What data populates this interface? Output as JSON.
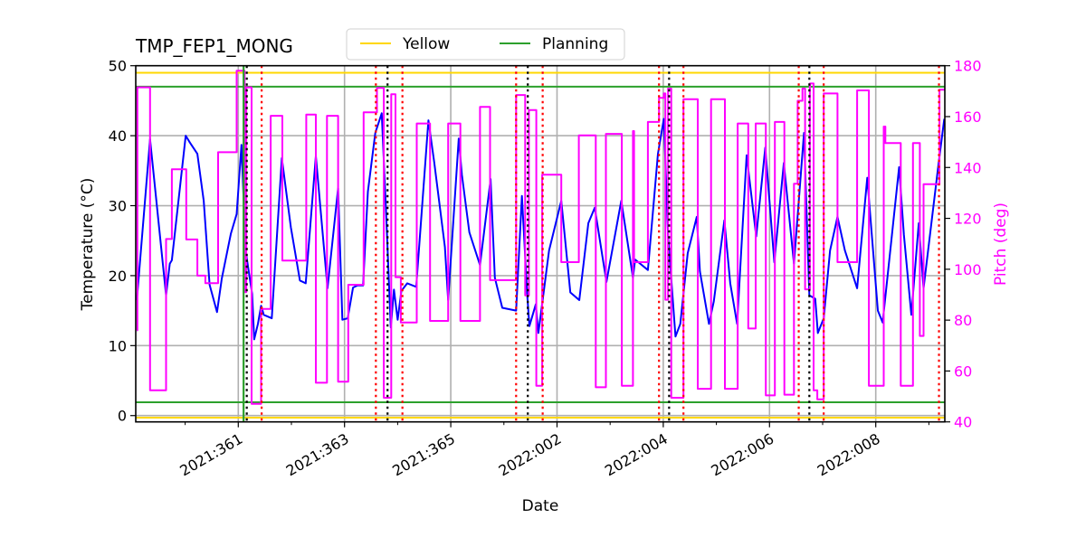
{
  "chart_data": {
    "type": "line",
    "title": "TMP_FEP1_MONG",
    "xlabel": "Date",
    "ylabel": "Temperature (°C)",
    "y2label": "Pitch (deg)",
    "xlim": [
      "2021:359.07",
      "2022:009.30"
    ],
    "ylim": [
      -0.9,
      50
    ],
    "y2lim": [
      40,
      180
    ],
    "grid": true,
    "legend_position": "top-center",
    "x_ticks": [
      "2021:361",
      "2021:363",
      "2021:365",
      "2022:002",
      "2022:004",
      "2022:006",
      "2022:008"
    ],
    "x_minor_ticks": [
      "2021:360",
      "2021:362",
      "2021:364",
      "2022:001",
      "2022:003",
      "2022:005",
      "2022:007",
      "2022:009"
    ],
    "y_ticks": [
      0,
      10,
      20,
      30,
      40,
      50
    ],
    "y2_ticks": [
      40,
      60,
      80,
      100,
      120,
      140,
      160,
      180
    ],
    "colors": {
      "temperature": "#0000ff",
      "pitch": "#ff00ff",
      "yellow": "#ffd700",
      "planning": "#2ca02c",
      "red_marker": "#ff0000",
      "black_marker": "#000000",
      "pitch_axis": "#ff00ff"
    },
    "legend": [
      {
        "label": "Yellow",
        "color": "#ffd700"
      },
      {
        "label": "Planning",
        "color": "#2ca02c"
      }
    ],
    "limits": {
      "yellow": [
        49.0,
        -0.3
      ],
      "planning": [
        47.0,
        1.9
      ]
    },
    "vertical_markers": [
      {
        "time": "2021:361.10",
        "style": "solid",
        "color": "#2ca02c"
      },
      {
        "time": "2021:361.16",
        "style": "dotted",
        "color": "#000000"
      },
      {
        "time": "2021:361.44",
        "style": "dotted",
        "color": "#ff0000"
      },
      {
        "time": "2021:363.59",
        "style": "dotted",
        "color": "#ff0000"
      },
      {
        "time": "2021:363.81",
        "style": "dotted",
        "color": "#000000"
      },
      {
        "time": "2021:364.09",
        "style": "dotted",
        "color": "#ff0000"
      },
      {
        "time": "2022:001.23",
        "style": "dotted",
        "color": "#ff0000"
      },
      {
        "time": "2022:001.45",
        "style": "dotted",
        "color": "#000000"
      },
      {
        "time": "2022:001.73",
        "style": "dotted",
        "color": "#ff0000"
      },
      {
        "time": "2022:003.92",
        "style": "dotted",
        "color": "#ff0000"
      },
      {
        "time": "2022:004.11",
        "style": "dotted",
        "color": "#000000"
      },
      {
        "time": "2022:004.38",
        "style": "dotted",
        "color": "#ff0000"
      },
      {
        "time": "2022:006.55",
        "style": "dotted",
        "color": "#ff0000"
      },
      {
        "time": "2022:006.75",
        "style": "dotted",
        "color": "#000000"
      },
      {
        "time": "2022:007.02",
        "style": "dotted",
        "color": "#ff0000"
      },
      {
        "time": "2022:009.19",
        "style": "dotted",
        "color": "#ff0000"
      }
    ],
    "series": [
      {
        "axis": "left",
        "color": "#0000ff",
        "points": [
          [
            "2021:359.09",
            16.5
          ],
          [
            "2021:359.34",
            39.5
          ],
          [
            "2021:359.64",
            17.2
          ],
          [
            "2021:359.71",
            21.7
          ],
          [
            "2021:359.75",
            22.2
          ],
          [
            "2021:360.01",
            40.0
          ],
          [
            "2021:360.09",
            39.0
          ],
          [
            "2021:360.23",
            37.4
          ],
          [
            "2021:360.35",
            30.7
          ],
          [
            "2021:360.46",
            18.7
          ],
          [
            "2021:360.60",
            14.8
          ],
          [
            "2021:360.69",
            19.6
          ],
          [
            "2021:360.86",
            26.0
          ],
          [
            "2021:360.97",
            28.8
          ],
          [
            "2021:361.06",
            38.7
          ],
          [
            "2021:361.14",
            23.5
          ],
          [
            "2021:361.26",
            17.4
          ],
          [
            "2021:361.30",
            10.9
          ],
          [
            "2021:361.37",
            13.1
          ],
          [
            "2021:361.43",
            15.7
          ],
          [
            "2021:361.48",
            14.4
          ],
          [
            "2021:361.63",
            13.9
          ],
          [
            "2021:361.82",
            36.8
          ],
          [
            "2021:361.99",
            26.9
          ],
          [
            "2021:362.16",
            19.3
          ],
          [
            "2021:362.27",
            18.9
          ],
          [
            "2021:362.46",
            37.1
          ],
          [
            "2021:362.68",
            18.2
          ],
          [
            "2021:362.88",
            32.5
          ],
          [
            "2021:362.96",
            13.7
          ],
          [
            "2021:363.06",
            13.9
          ],
          [
            "2021:363.16",
            18.3
          ],
          [
            "2021:363.24",
            18.6
          ],
          [
            "2021:363.35",
            18.6
          ],
          [
            "2021:363.44",
            32.0
          ],
          [
            "2021:363.58",
            40.4
          ],
          [
            "2021:363.70",
            43.2
          ],
          [
            "2021:363.78",
            29.4
          ],
          [
            "2021:363.87",
            12.6
          ],
          [
            "2021:363.93",
            18.0
          ],
          [
            "2021:364.00",
            13.7
          ],
          [
            "2021:364.07",
            17.8
          ],
          [
            "2021:364.18",
            18.9
          ],
          [
            "2021:364.35",
            18.4
          ],
          [
            "2021:364.58",
            42.2
          ],
          [
            "2021:364.69",
            36.1
          ],
          [
            "2021:364.89",
            24.1
          ],
          [
            "2021:364.95",
            16.5
          ],
          [
            "2021:365.15",
            39.6
          ],
          [
            "2021:365.21",
            34.4
          ],
          [
            "2021:365.35",
            26.2
          ],
          [
            "2021:365.55",
            21.5
          ],
          [
            "2021:365.75",
            33.8
          ],
          [
            "2021:365.83",
            19.7
          ],
          [
            "2021:365.97",
            15.4
          ],
          [
            "2022:001.23",
            15.0
          ],
          [
            "2022:001.34",
            31.4
          ],
          [
            "2022:001.44",
            17.2
          ],
          [
            "2022:001.48",
            12.8
          ],
          [
            "2022:001.60",
            15.9
          ],
          [
            "2022:001.65",
            11.8
          ],
          [
            "2022:001.85",
            23.6
          ],
          [
            "2022:002.08",
            30.7
          ],
          [
            "2022:002.25",
            17.6
          ],
          [
            "2022:002.42",
            16.5
          ],
          [
            "2022:002.59",
            27.5
          ],
          [
            "2022:002.71",
            29.7
          ],
          [
            "2022:002.93",
            19.1
          ],
          [
            "2022:003.21",
            30.7
          ],
          [
            "2022:003.43",
            19.7
          ],
          [
            "2022:003.47",
            22.3
          ],
          [
            "2022:003.71",
            20.8
          ],
          [
            "2022:003.90",
            37.4
          ],
          [
            "2022:004.01",
            42.4
          ],
          [
            "2022:004.09",
            25.8
          ],
          [
            "2022:004.23",
            11.3
          ],
          [
            "2022:004.32",
            13.1
          ],
          [
            "2022:004.46",
            23.2
          ],
          [
            "2022:004.63",
            28.4
          ],
          [
            "2022:004.69",
            20.6
          ],
          [
            "2022:004.86",
            13.1
          ],
          [
            "2022:004.95",
            16.3
          ],
          [
            "2022:005.15",
            27.9
          ],
          [
            "2022:005.26",
            18.9
          ],
          [
            "2022:005.39",
            13.1
          ],
          [
            "2022:005.57",
            37.2
          ],
          [
            "2022:005.75",
            25.6
          ],
          [
            "2022:005.92",
            38.3
          ],
          [
            "2022:006.09",
            21.9
          ],
          [
            "2022:006.27",
            36.1
          ],
          [
            "2022:006.46",
            21.7
          ],
          [
            "2022:006.65",
            40.4
          ],
          [
            "2022:006.75",
            17.2
          ],
          [
            "2022:006.86",
            16.7
          ],
          [
            "2022:006.91",
            11.8
          ],
          [
            "2022:007.02",
            13.9
          ],
          [
            "2022:007.14",
            23.6
          ],
          [
            "2022:007.28",
            28.4
          ],
          [
            "2022:007.42",
            23.6
          ],
          [
            "2022:007.65",
            18.2
          ],
          [
            "2022:007.84",
            34.0
          ],
          [
            "2022:008.04",
            15.0
          ],
          [
            "2022:008.13",
            13.3
          ],
          [
            "2022:008.44",
            35.5
          ],
          [
            "2022:008.53",
            25.8
          ],
          [
            "2022:008.67",
            14.4
          ],
          [
            "2022:008.81",
            27.5
          ],
          [
            "2022:008.90",
            18.2
          ],
          [
            "2022:009.18",
            35.9
          ],
          [
            "2022:009.29",
            42.4
          ]
        ]
      },
      {
        "axis": "right",
        "color": "#ff00ff",
        "step": "post",
        "points": [
          [
            "2021:359.09",
            76
          ],
          [
            "2021:359.10",
            171.5
          ],
          [
            "2021:359.34",
            52.4
          ],
          [
            "2021:359.64",
            111.9
          ],
          [
            "2021:359.75",
            139.3
          ],
          [
            "2021:360.02",
            111.7
          ],
          [
            "2021:360.23",
            97.5
          ],
          [
            "2021:360.38",
            94.5
          ],
          [
            "2021:360.62",
            146.0
          ],
          [
            "2021:360.97",
            178
          ],
          [
            "2021:361.12",
            91
          ],
          [
            "2021:361.15",
            171.5
          ],
          [
            "2021:361.25",
            47.1
          ],
          [
            "2021:361.43",
            84.4
          ],
          [
            "2021:361.61",
            160.3
          ],
          [
            "2021:361.83",
            103.4
          ],
          [
            "2021:362.28",
            160.8
          ],
          [
            "2021:362.46",
            55.4
          ],
          [
            "2021:362.67",
            160.3
          ],
          [
            "2021:362.88",
            55.8
          ],
          [
            "2021:363.07",
            93.9
          ],
          [
            "2021:363.36",
            161.7
          ],
          [
            "2021:363.61",
            171.3
          ],
          [
            "2021:363.74",
            49.5
          ],
          [
            "2021:363.88",
            168.8
          ],
          [
            "2021:363.96",
            96.9
          ],
          [
            "2021:364.06",
            79.1
          ],
          [
            "2021:364.36",
            157.3
          ],
          [
            "2021:364.61",
            79.7
          ],
          [
            "2021:364.95",
            157.3
          ],
          [
            "2021:365.18",
            79.7
          ],
          [
            "2021:365.55",
            163.8
          ],
          [
            "2021:365.74",
            95.7
          ],
          [
            "2022:001.23",
            168.5
          ],
          [
            "2022:001.40",
            89.7
          ],
          [
            "2022:001.47",
            162.6
          ],
          [
            "2022:001.61",
            54.2
          ],
          [
            "2022:001.72",
            137.2
          ],
          [
            "2022:002.08",
            102.8
          ],
          [
            "2022:002.41",
            152.6
          ],
          [
            "2022:002.73",
            53.6
          ],
          [
            "2022:002.92",
            153.2
          ],
          [
            "2022:003.22",
            54.2
          ],
          [
            "2022:003.43",
            154.3
          ],
          [
            "2022:003.45",
            102.8
          ],
          [
            "2022:003.71",
            157.9
          ],
          [
            "2022:003.92",
            167.4
          ],
          [
            "2022:004.01",
            169.1
          ],
          [
            "2022:004.04",
            88
          ],
          [
            "2022:004.09",
            171
          ],
          [
            "2022:004.15",
            49.5
          ],
          [
            "2022:004.38",
            166.8
          ],
          [
            "2022:004.65",
            53
          ],
          [
            "2022:004.90",
            166.8
          ],
          [
            "2022:005.16",
            53
          ],
          [
            "2022:005.40",
            157.3
          ],
          [
            "2022:005.60",
            76.7
          ],
          [
            "2022:005.74",
            157.3
          ],
          [
            "2022:005.93",
            50.4
          ],
          [
            "2022:006.10",
            157.9
          ],
          [
            "2022:006.28",
            50.7
          ],
          [
            "2022:006.46",
            133.6
          ],
          [
            "2022:006.53",
            166.2
          ],
          [
            "2022:006.62",
            171
          ],
          [
            "2022:006.67",
            92.1
          ],
          [
            "2022:006.76",
            173
          ],
          [
            "2022:006.83",
            52.4
          ],
          [
            "2022:006.90",
            48.9
          ],
          [
            "2022:007.02",
            169.1
          ],
          [
            "2022:007.28",
            102.8
          ],
          [
            "2022:007.65",
            170.3
          ],
          [
            "2022:007.87",
            54.2
          ],
          [
            "2022:008.15",
            156.1
          ],
          [
            "2022:008.18",
            149.6
          ],
          [
            "2022:008.47",
            54.2
          ],
          [
            "2022:008.70",
            149.6
          ],
          [
            "2022:008.83",
            73.8
          ],
          [
            "2022:008.90",
            133.4
          ],
          [
            "2022:009.20",
            170.6
          ],
          [
            "2022:009.30",
            170.6
          ]
        ]
      }
    ]
  }
}
